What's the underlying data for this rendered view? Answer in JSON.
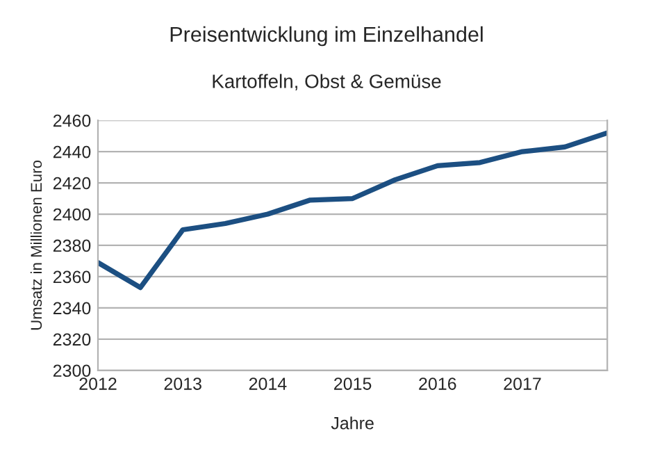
{
  "chart_data": {
    "type": "line",
    "title": "Preisentwicklung im Einzelhandel",
    "subtitle": "Kartoffeln, Obst & Gemüse",
    "xlabel": "Jahre",
    "ylabel": "Umsatz in Millionen Euro",
    "categories": [
      "2012",
      null,
      "2013",
      null,
      "2014",
      null,
      "2015",
      null,
      "2016",
      null,
      "2017",
      null,
      null
    ],
    "series": [
      {
        "color": "#1c4f82",
        "values": [
          2369,
          2353,
          2390,
          2394,
          2400,
          2409,
          2410,
          2422,
          2431,
          2433,
          2440,
          2443,
          2452
        ]
      }
    ],
    "ylim": [
      2300,
      2460
    ],
    "yticks": [
      2300,
      2320,
      2340,
      2360,
      2380,
      2400,
      2420,
      2440,
      2460
    ],
    "grid": "y",
    "legend": false,
    "marker": "none",
    "line_style": "solid"
  }
}
